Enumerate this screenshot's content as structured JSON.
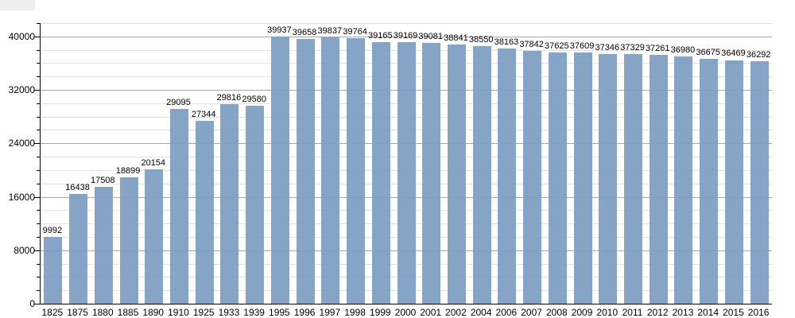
{
  "chart_data": {
    "type": "bar",
    "title": "",
    "xlabel": "",
    "ylabel": "",
    "categories": [
      "1825",
      "1875",
      "1880",
      "1885",
      "1890",
      "1910",
      "1925",
      "1933",
      "1939",
      "1995",
      "1996",
      "1997",
      "1998",
      "1999",
      "2000",
      "2001",
      "2002",
      "2004",
      "2006",
      "2007",
      "2008",
      "2009",
      "2010",
      "2011",
      "2012",
      "2013",
      "2014",
      "2015",
      "2016"
    ],
    "values": [
      9992,
      16438,
      17508,
      18899,
      20154,
      29095,
      27344,
      29816,
      29580,
      39937,
      39658,
      39837,
      39764,
      39165,
      39169,
      39081,
      38841,
      38550,
      38163,
      37842,
      37625,
      37609,
      37346,
      37329,
      37261,
      36980,
      36675,
      36469,
      36292
    ],
    "value_labels_shown": true,
    "ylim": [
      0,
      42000
    ],
    "y_major_step": 8000,
    "y_minor_step": 2000,
    "y_tick_labels": [
      "0",
      "8000",
      "16000",
      "24000",
      "32000",
      "40000"
    ],
    "grid": "horizontal major+minor",
    "legend_position": "none",
    "bar_color": "#7d9ec2",
    "major_grid_color": "#a8a8a8",
    "minor_grid_color": "#e2e2e2",
    "axis_color": "#000000",
    "text_color": "#000000",
    "background_color": "#ffffff"
  }
}
